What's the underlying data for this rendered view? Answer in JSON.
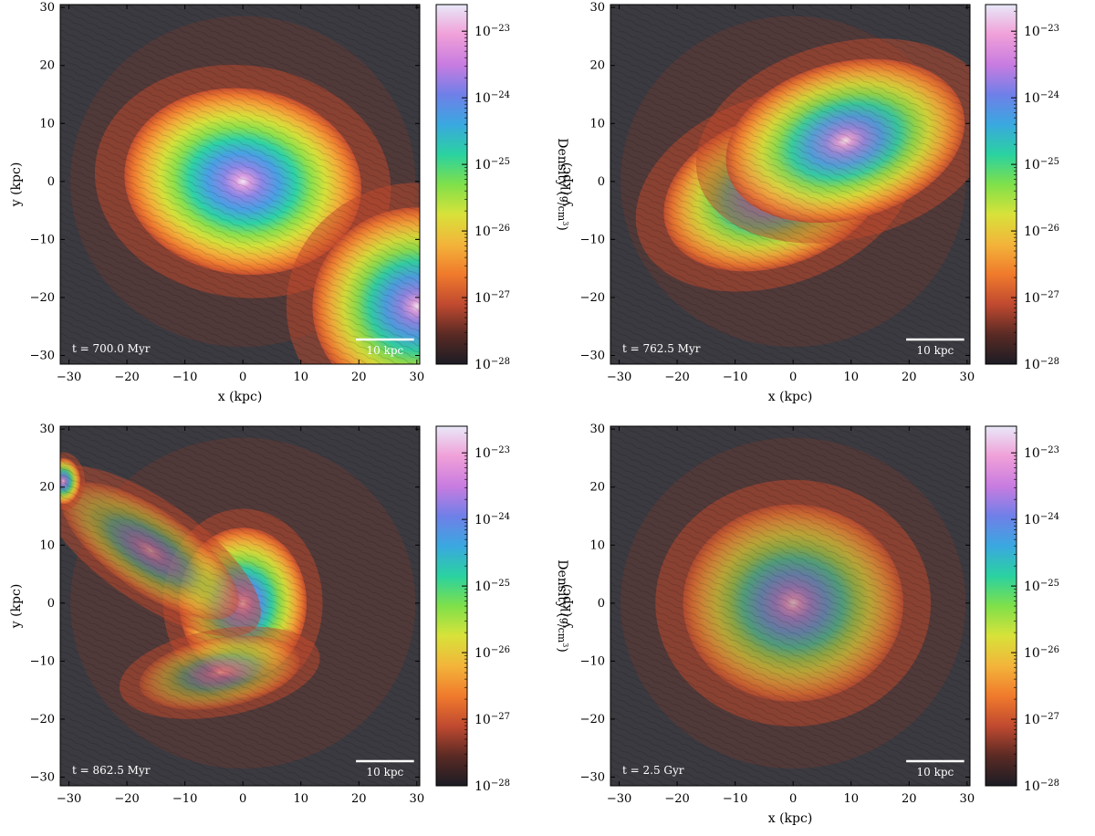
{
  "panels": [
    {
      "id": "p1",
      "time_label": "t = 700.0 Myr",
      "scale_bar_label": "10 kpc",
      "show_xlabel": true,
      "blobs": [
        {
          "cx": 0,
          "cy": 0,
          "rx": 20.5,
          "ry": 16,
          "rot": -8,
          "core": 1.0
        },
        {
          "cx": 30,
          "cy": -21.5,
          "rx": 18,
          "ry": 17,
          "rot": 0,
          "core": 0.95
        }
      ]
    },
    {
      "id": "p2",
      "time_label": "t = 762.5 Myr",
      "scale_bar_label": "10 kpc",
      "show_xlabel": true,
      "blobs": [
        {
          "cx": -3,
          "cy": -1.5,
          "rx": 20,
          "ry": 13,
          "rot": 20,
          "core": 0.9
        },
        {
          "cx": 9,
          "cy": 7,
          "rx": 21,
          "ry": 13.5,
          "rot": 15,
          "core": 0.9
        }
      ]
    },
    {
      "id": "p3",
      "time_label": "t = 862.5 Myr",
      "scale_bar_label": "10 kpc",
      "show_xlabel": false,
      "blobs": [
        {
          "cx": 0,
          "cy": 0,
          "rx": 11,
          "ry": 13,
          "rot": 0,
          "core": 0.95
        },
        {
          "cx": -16,
          "cy": 9,
          "rx": 18,
          "ry": 7,
          "rot": -35,
          "core": 0.45
        },
        {
          "cx": -4,
          "cy": -12,
          "rx": 14,
          "ry": 6,
          "rot": 10,
          "core": 0.4
        },
        {
          "cx": -31,
          "cy": 21,
          "rx": 3,
          "ry": 4,
          "rot": 0,
          "core": 0.8
        }
      ]
    },
    {
      "id": "p4",
      "time_label": "t = 2.5 Gyr",
      "scale_bar_label": "10 kpc",
      "show_xlabel": true,
      "blobs": [
        {
          "cx": 0,
          "cy": 0,
          "rx": 19,
          "ry": 17,
          "rot": 0,
          "core": 0.62
        }
      ]
    }
  ],
  "axes": {
    "xlabel": "x (kpc)",
    "ylabel": "y (kpc)",
    "xlim": [
      -31.5,
      30.5
    ],
    "ylim": [
      -31.5,
      30.5
    ],
    "xticks": [
      -30,
      -20,
      -10,
      0,
      10,
      20,
      30
    ],
    "yticks": [
      -30,
      -20,
      -10,
      0,
      10,
      20,
      30
    ]
  },
  "colorbar": {
    "label": "Density",
    "unit_num": "g",
    "unit_den": "cm",
    "unit_den_exp": "3",
    "base": "10",
    "ticks": [
      "−23",
      "−24",
      "−25",
      "−26",
      "−27",
      "−28"
    ],
    "log_min": -28,
    "log_max": -22.6,
    "stops": [
      "#1c1c24",
      "#5a2a24",
      "#c14a30",
      "#f07a2c",
      "#f3b43a",
      "#d8e23a",
      "#7fe04a",
      "#2ad2a0",
      "#3aa8e0",
      "#6f7fe8",
      "#c87ce0",
      "#f0a0d8",
      "#e8e8f8"
    ]
  },
  "colors": {
    "background_gas": "#3b3a40",
    "outer_gas": "#4a4a56"
  }
}
